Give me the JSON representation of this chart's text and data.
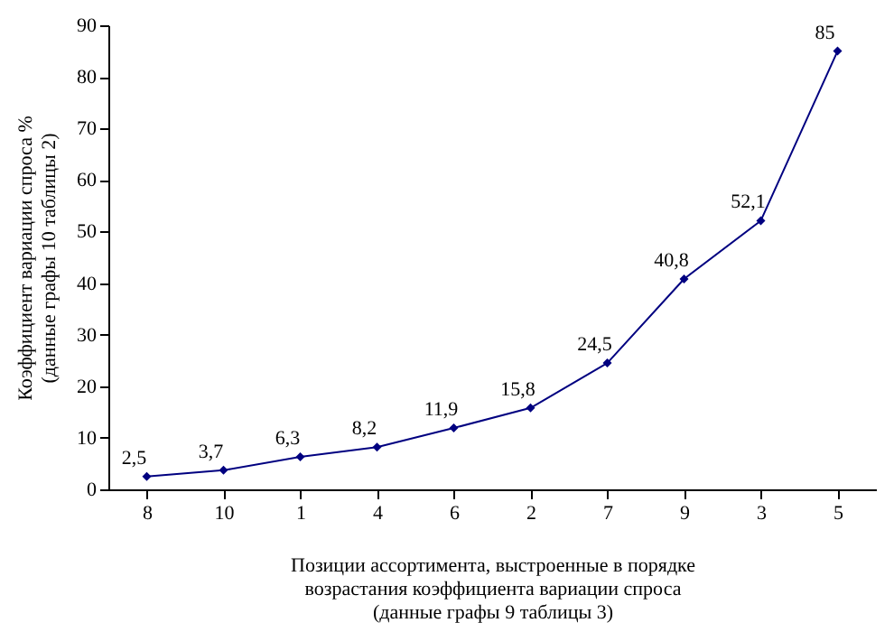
{
  "chart_data": {
    "type": "line",
    "xlabel": "Позиции ассортимента, выстроенные в порядке\nвозрастания коэффициента вариации спроса\n(данные графы 9 таблицы 3)",
    "ylabel": "Коэффициент вариации спроса %\n(данные графы 10 таблицы 2)",
    "categories": [
      "8",
      "10",
      "1",
      "4",
      "6",
      "2",
      "7",
      "9",
      "3",
      "5"
    ],
    "series": [
      {
        "color": "#000080",
        "values": [
          2.5,
          3.7,
          6.3,
          8.2,
          11.9,
          15.8,
          24.5,
          40.8,
          52.1,
          85
        ],
        "value_labels": [
          "2,5",
          "3,7",
          "6,3",
          "8,2",
          "11,9",
          "15,8",
          "24,5",
          "40,8",
          "52,1",
          "85"
        ]
      }
    ],
    "ylim": [
      0,
      90
    ],
    "yticks": [
      0,
      10,
      20,
      30,
      40,
      50,
      60,
      70,
      80,
      90
    ],
    "grid": false,
    "marker": "diamond",
    "line_style": "solid"
  }
}
